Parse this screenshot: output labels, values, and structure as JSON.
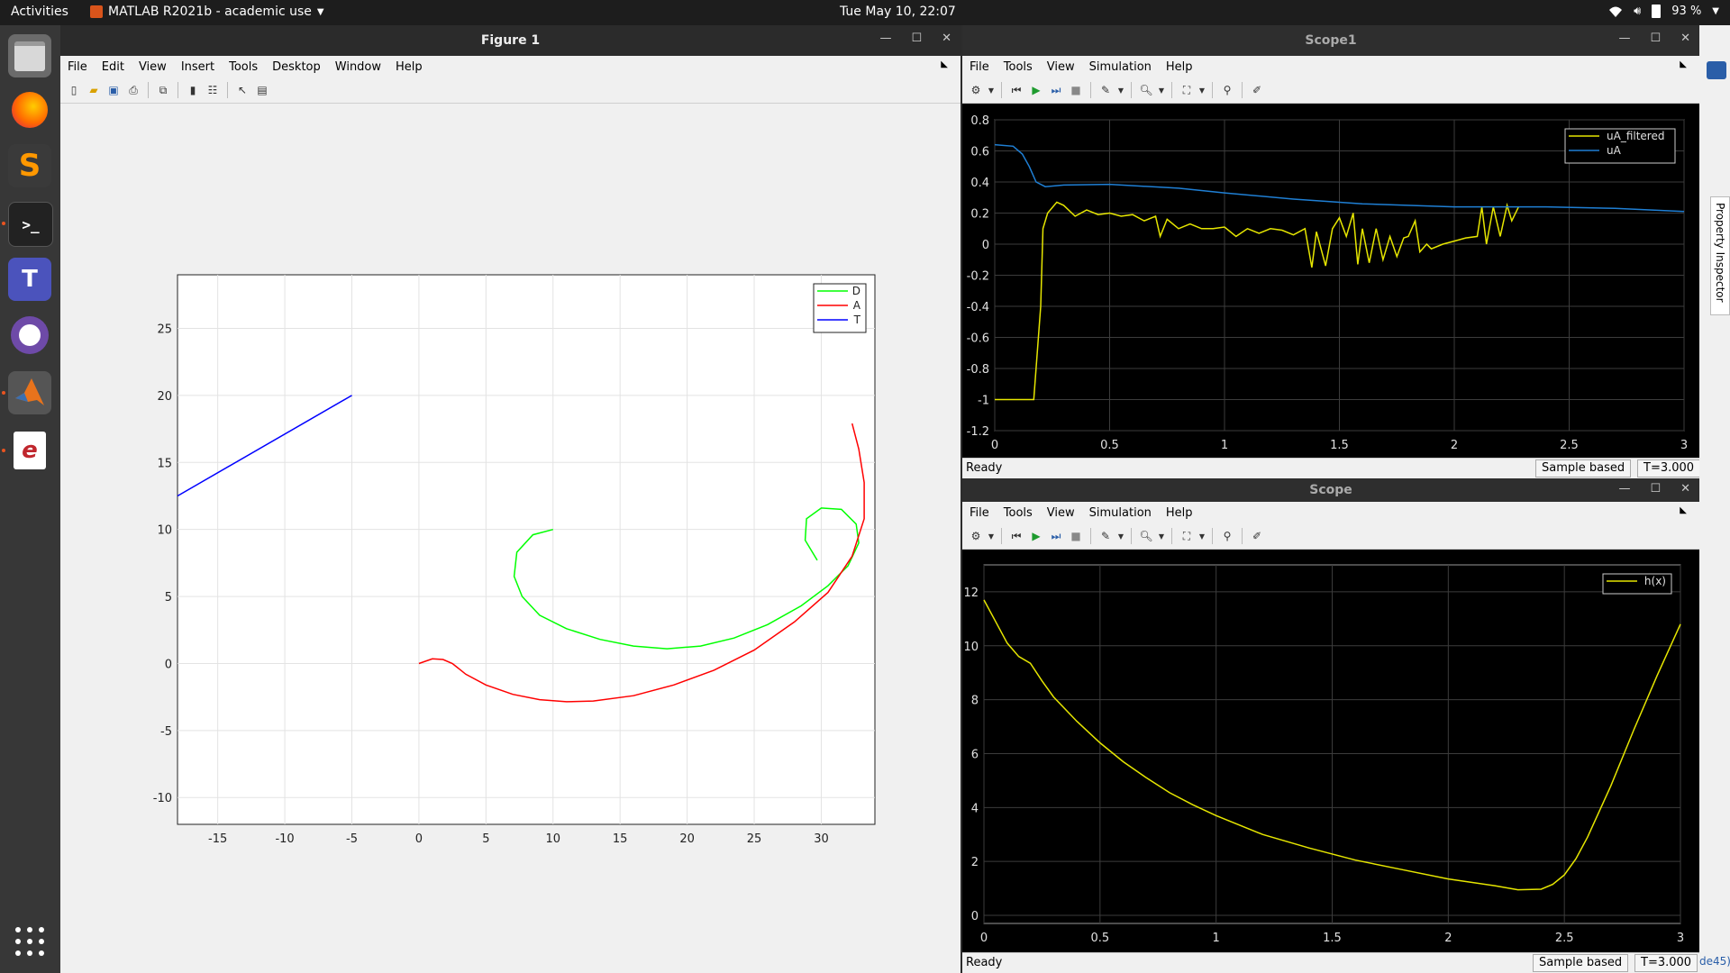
{
  "topbar": {
    "activities": "Activities",
    "app_title": "MATLAB R2021b - academic use",
    "clock": "Tue May 10, 22:07",
    "battery": "93 %"
  },
  "dock": {
    "icons": [
      "files-icon",
      "firefox-icon",
      "sublime-icon",
      "terminal-icon",
      "teams-icon",
      "github-icon",
      "matlab-icon",
      "document-viewer-icon"
    ]
  },
  "figure1": {
    "title": "Figure 1",
    "menu": [
      "File",
      "Edit",
      "View",
      "Insert",
      "Tools",
      "Desktop",
      "Window",
      "Help"
    ],
    "chart_data": {
      "type": "line",
      "xlim": [
        -18,
        34
      ],
      "ylim": [
        -12,
        29
      ],
      "xticks": [
        -15,
        -10,
        -5,
        0,
        5,
        10,
        15,
        20,
        25,
        30
      ],
      "yticks": [
        -10,
        -5,
        0,
        5,
        10,
        15,
        20,
        25
      ],
      "grid": true,
      "legend_position": "top-right",
      "series": [
        {
          "name": "D",
          "color": "#00ff00",
          "points": [
            [
              10,
              10
            ],
            [
              8.5,
              9.6
            ],
            [
              7.3,
              8.3
            ],
            [
              7.1,
              6.5
            ],
            [
              7.7,
              5.0
            ],
            [
              9.0,
              3.6
            ],
            [
              11,
              2.6
            ],
            [
              13.5,
              1.8
            ],
            [
              16,
              1.3
            ],
            [
              18.5,
              1.1
            ],
            [
              21,
              1.3
            ],
            [
              23.5,
              1.9
            ],
            [
              26,
              2.9
            ],
            [
              28.5,
              4.3
            ],
            [
              30.5,
              5.8
            ],
            [
              32,
              7.3
            ],
            [
              32.8,
              9.0
            ],
            [
              32.6,
              10.4
            ],
            [
              31.5,
              11.5
            ],
            [
              30,
              11.6
            ],
            [
              28.9,
              10.8
            ],
            [
              28.8,
              9.2
            ],
            [
              29.7,
              7.7
            ]
          ]
        },
        {
          "name": "A",
          "color": "#ff0000",
          "points": [
            [
              0,
              0
            ],
            [
              1,
              0.35
            ],
            [
              1.8,
              0.3
            ],
            [
              2.5,
              0
            ],
            [
              3.5,
              -0.8
            ],
            [
              5,
              -1.6
            ],
            [
              7,
              -2.3
            ],
            [
              9,
              -2.7
            ],
            [
              11,
              -2.85
            ],
            [
              13,
              -2.8
            ],
            [
              16,
              -2.4
            ],
            [
              19,
              -1.6
            ],
            [
              22,
              -0.5
            ],
            [
              25,
              1.0
            ],
            [
              28,
              3.1
            ],
            [
              30.5,
              5.3
            ],
            [
              32.3,
              8.0
            ],
            [
              33.2,
              10.8
            ],
            [
              33.2,
              13.5
            ],
            [
              32.8,
              16
            ],
            [
              32.3,
              17.9
            ]
          ]
        },
        {
          "name": "T",
          "color": "#0000ff",
          "points": [
            [
              -18,
              12.5
            ],
            [
              -5,
              20
            ]
          ]
        }
      ]
    }
  },
  "scope1": {
    "title": "Scope1",
    "menu": [
      "File",
      "Tools",
      "View",
      "Simulation",
      "Help"
    ],
    "status": "Ready",
    "sample": "Sample based",
    "time": "T=3.000",
    "chart_data": {
      "type": "line",
      "xlim": [
        0,
        3
      ],
      "ylim": [
        -1.2,
        0.8
      ],
      "xticks": [
        0,
        0.5,
        1,
        1.5,
        2,
        2.5,
        3
      ],
      "yticks": [
        0.8,
        0.6,
        0.4,
        0.2,
        0,
        -0.2,
        -0.4,
        -0.6,
        -0.8,
        -1,
        -1.2
      ],
      "grid": true,
      "legend_position": "top-right",
      "series": [
        {
          "name": "uA_filtered",
          "color": "#e6e600",
          "points": [
            [
              0,
              -1
            ],
            [
              0.17,
              -1
            ],
            [
              0.2,
              -0.4
            ],
            [
              0.21,
              0.1
            ],
            [
              0.23,
              0.2
            ],
            [
              0.27,
              0.27
            ],
            [
              0.3,
              0.25
            ],
            [
              0.35,
              0.18
            ],
            [
              0.4,
              0.22
            ],
            [
              0.45,
              0.19
            ],
            [
              0.5,
              0.2
            ],
            [
              0.55,
              0.18
            ],
            [
              0.6,
              0.19
            ],
            [
              0.65,
              0.15
            ],
            [
              0.7,
              0.18
            ],
            [
              0.72,
              0.05
            ],
            [
              0.75,
              0.16
            ],
            [
              0.8,
              0.1
            ],
            [
              0.85,
              0.13
            ],
            [
              0.9,
              0.1
            ],
            [
              0.95,
              0.1
            ],
            [
              1.0,
              0.11
            ],
            [
              1.05,
              0.05
            ],
            [
              1.1,
              0.1
            ],
            [
              1.15,
              0.07
            ],
            [
              1.2,
              0.1
            ],
            [
              1.25,
              0.09
            ],
            [
              1.3,
              0.06
            ],
            [
              1.35,
              0.1
            ],
            [
              1.38,
              -0.15
            ],
            [
              1.4,
              0.08
            ],
            [
              1.44,
              -0.14
            ],
            [
              1.47,
              0.1
            ],
            [
              1.5,
              0.17
            ],
            [
              1.53,
              0.05
            ],
            [
              1.56,
              0.2
            ],
            [
              1.58,
              -0.13
            ],
            [
              1.6,
              0.1
            ],
            [
              1.63,
              -0.12
            ],
            [
              1.66,
              0.1
            ],
            [
              1.69,
              -0.1
            ],
            [
              1.72,
              0.05
            ],
            [
              1.75,
              -0.08
            ],
            [
              1.78,
              0.04
            ],
            [
              1.8,
              0.05
            ],
            [
              1.83,
              0.15
            ],
            [
              1.85,
              -0.05
            ],
            [
              1.88,
              0.0
            ],
            [
              1.9,
              -0.03
            ],
            [
              1.95,
              0.0
            ],
            [
              2.0,
              0.02
            ],
            [
              2.05,
              0.04
            ],
            [
              2.1,
              0.05
            ],
            [
              2.12,
              0.24
            ],
            [
              2.14,
              0.0
            ],
            [
              2.17,
              0.24
            ],
            [
              2.2,
              0.05
            ],
            [
              2.23,
              0.25
            ],
            [
              2.25,
              0.15
            ],
            [
              2.28,
              0.24
            ]
          ]
        },
        {
          "name": "uA",
          "color": "#1f7fd4",
          "points": [
            [
              0,
              0.64
            ],
            [
              0.08,
              0.63
            ],
            [
              0.12,
              0.58
            ],
            [
              0.15,
              0.5
            ],
            [
              0.18,
              0.4
            ],
            [
              0.22,
              0.37
            ],
            [
              0.3,
              0.38
            ],
            [
              0.5,
              0.385
            ],
            [
              0.8,
              0.36
            ],
            [
              1.0,
              0.33
            ],
            [
              1.3,
              0.29
            ],
            [
              1.6,
              0.26
            ],
            [
              2.0,
              0.24
            ],
            [
              2.4,
              0.24
            ],
            [
              2.7,
              0.23
            ],
            [
              3.0,
              0.21
            ]
          ]
        }
      ]
    }
  },
  "scope": {
    "title": "Scope",
    "menu": [
      "File",
      "Tools",
      "View",
      "Simulation",
      "Help"
    ],
    "status": "Ready",
    "sample": "Sample based",
    "time": "T=3.000",
    "chart_data": {
      "type": "line",
      "xlim": [
        0,
        3
      ],
      "ylim": [
        -0.3,
        13
      ],
      "xticks": [
        0,
        0.5,
        1,
        1.5,
        2,
        2.5,
        3
      ],
      "yticks": [
        12,
        10,
        8,
        6,
        4,
        2,
        0
      ],
      "grid": true,
      "legend_position": "top-right",
      "series": [
        {
          "name": "h(x)",
          "color": "#e6e600",
          "points": [
            [
              0,
              11.7
            ],
            [
              0.05,
              10.9
            ],
            [
              0.1,
              10.1
            ],
            [
              0.15,
              9.6
            ],
            [
              0.2,
              9.35
            ],
            [
              0.25,
              8.7
            ],
            [
              0.3,
              8.1
            ],
            [
              0.4,
              7.2
            ],
            [
              0.5,
              6.4
            ],
            [
              0.6,
              5.7
            ],
            [
              0.7,
              5.1
            ],
            [
              0.8,
              4.55
            ],
            [
              0.9,
              4.1
            ],
            [
              1.0,
              3.7
            ],
            [
              1.2,
              3.0
            ],
            [
              1.4,
              2.5
            ],
            [
              1.6,
              2.05
            ],
            [
              1.8,
              1.7
            ],
            [
              2.0,
              1.35
            ],
            [
              2.2,
              1.1
            ],
            [
              2.3,
              0.95
            ],
            [
              2.4,
              0.97
            ],
            [
              2.45,
              1.15
            ],
            [
              2.5,
              1.5
            ],
            [
              2.55,
              2.1
            ],
            [
              2.6,
              2.9
            ],
            [
              2.7,
              4.8
            ],
            [
              2.8,
              6.9
            ],
            [
              2.9,
              8.9
            ],
            [
              3.0,
              10.8
            ]
          ]
        }
      ]
    }
  },
  "property_inspector": "Property Inspector",
  "background_fragment": "de45)"
}
